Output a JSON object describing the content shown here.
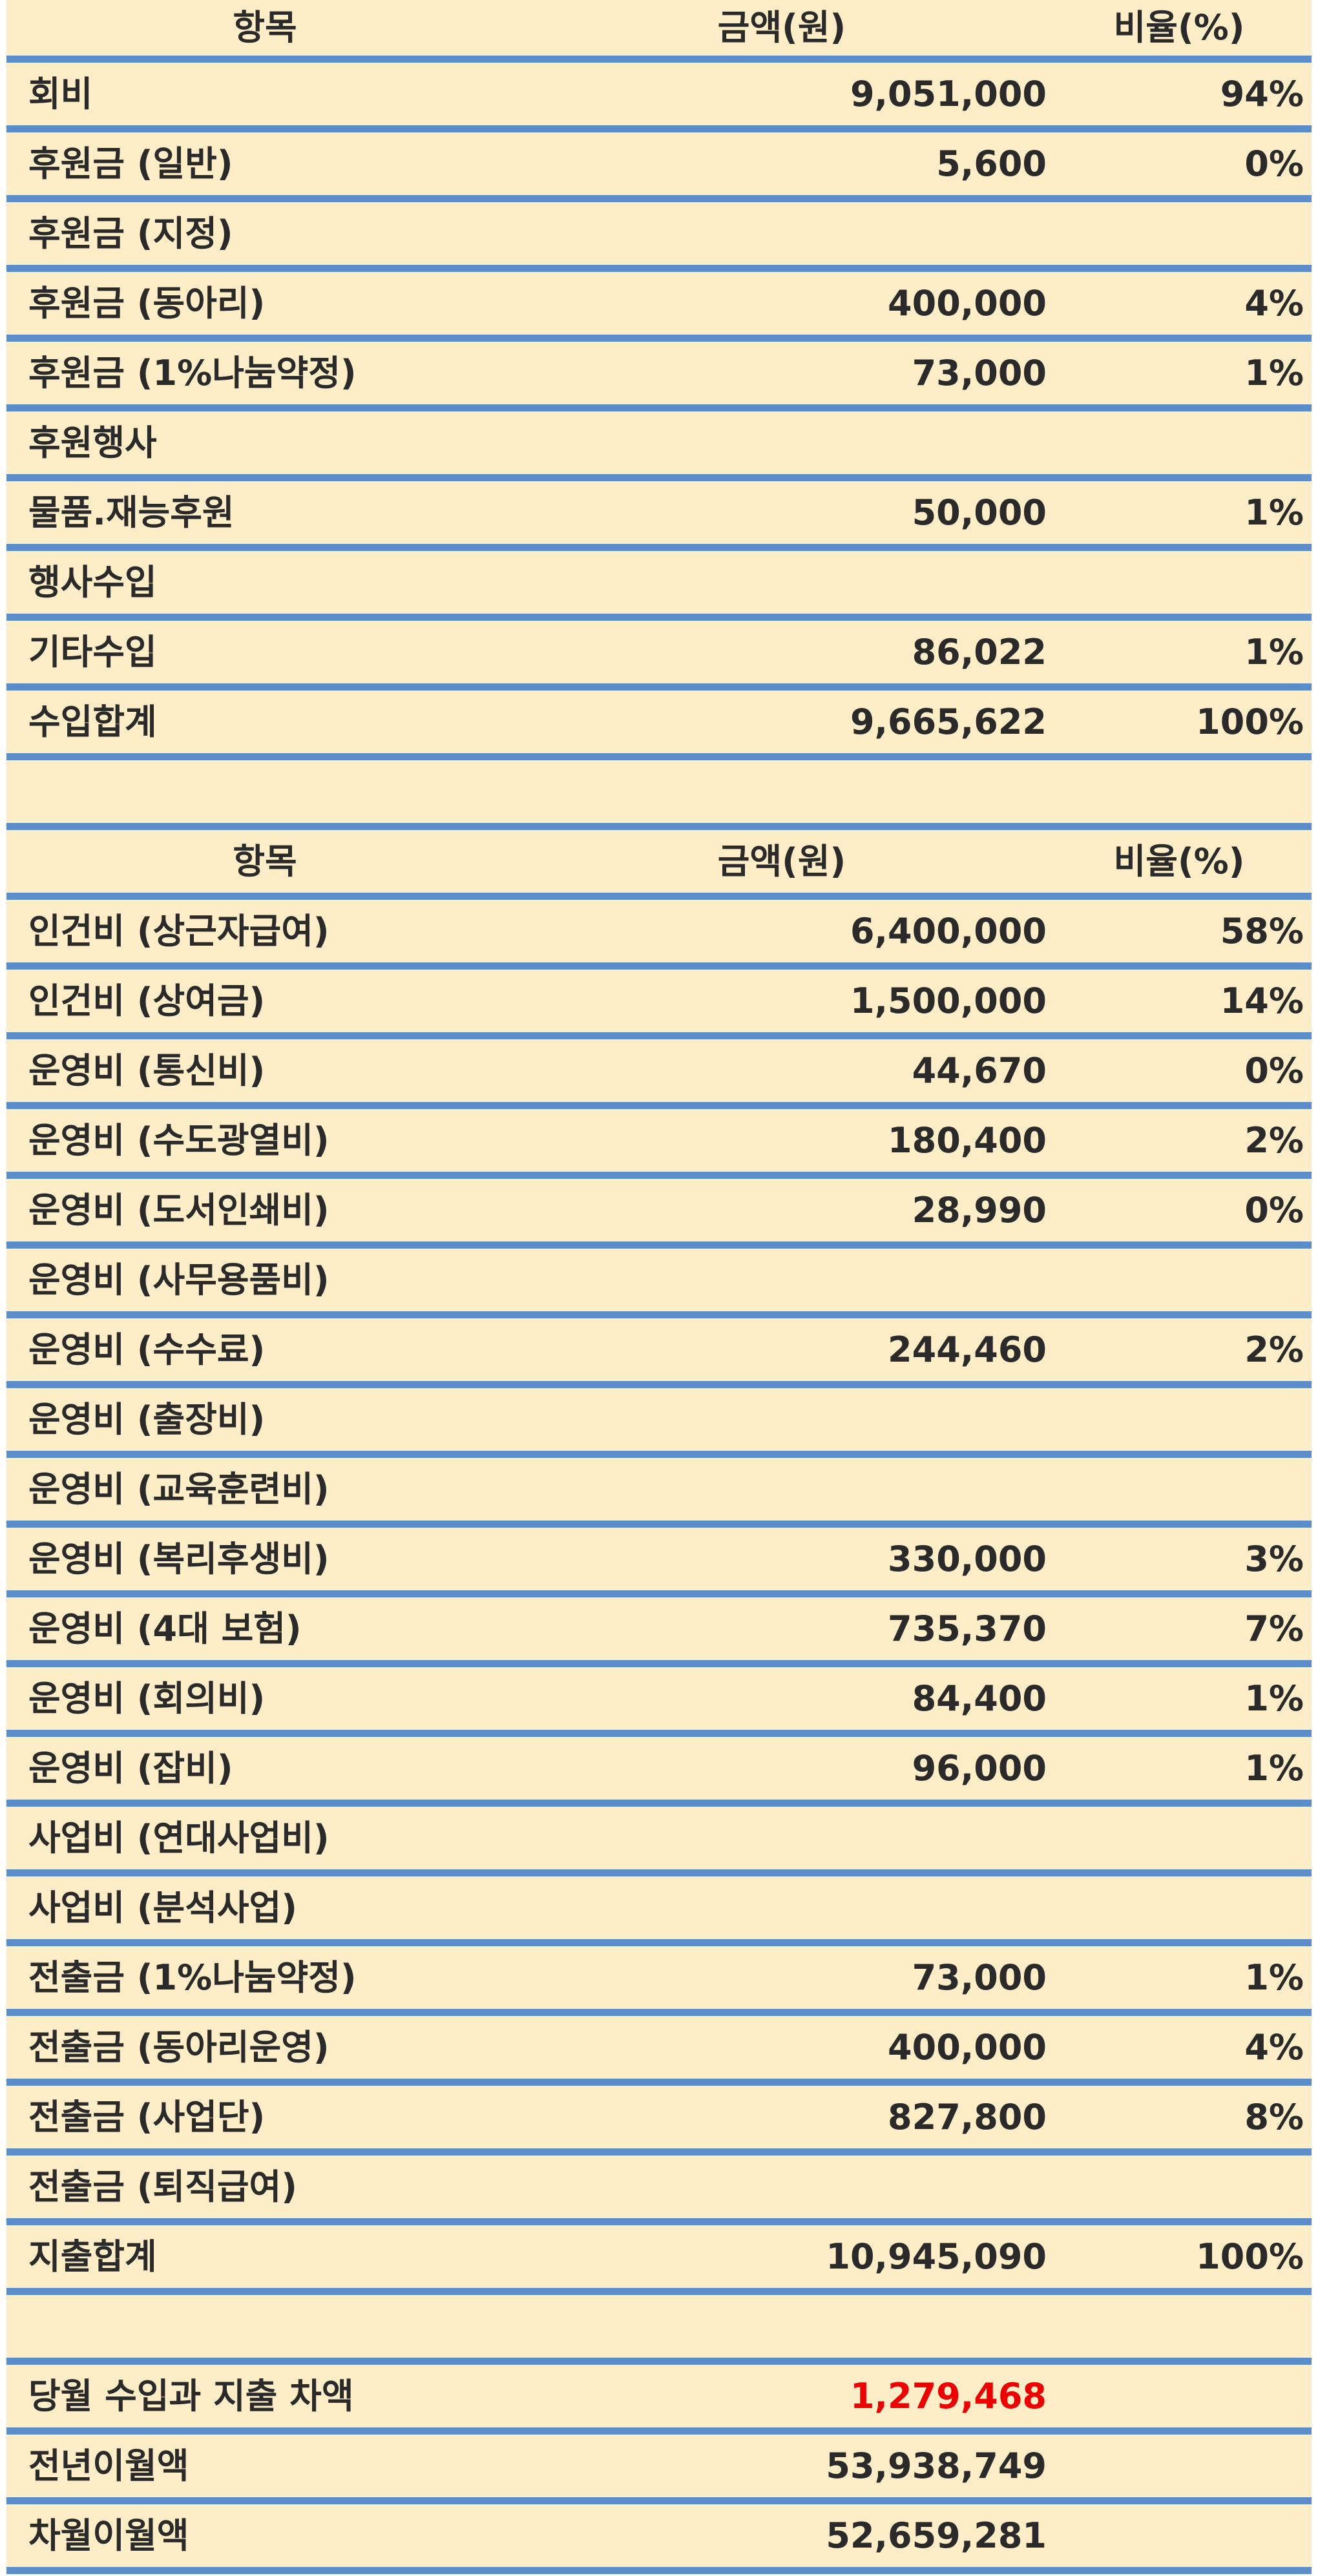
{
  "income": {
    "header": {
      "item": "항목",
      "amount": "금액(원)",
      "ratio": "비율(%)"
    },
    "rows": [
      {
        "item": "회비",
        "amount": "9,051,000",
        "ratio": "94%"
      },
      {
        "item": "후원금 (일반)",
        "amount": "5,600",
        "ratio": "0%"
      },
      {
        "item": "후원금 (지정)",
        "amount": "",
        "ratio": ""
      },
      {
        "item": "후원금 (동아리)",
        "amount": "400,000",
        "ratio": "4%"
      },
      {
        "item": "후원금 (1%나눔약정)",
        "amount": "73,000",
        "ratio": "1%"
      },
      {
        "item": "후원행사",
        "amount": "",
        "ratio": ""
      },
      {
        "item": "물품.재능후원",
        "amount": "50,000",
        "ratio": "1%"
      },
      {
        "item": "행사수입",
        "amount": "",
        "ratio": ""
      },
      {
        "item": "기타수입",
        "amount": "86,022",
        "ratio": "1%"
      },
      {
        "item": "수입합계",
        "amount": "9,665,622",
        "ratio": "100%"
      }
    ]
  },
  "expense": {
    "header": {
      "item": "항목",
      "amount": "금액(원)",
      "ratio": "비율(%)"
    },
    "rows": [
      {
        "item": "인건비 (상근자급여)",
        "amount": "6,400,000",
        "ratio": "58%"
      },
      {
        "item": "인건비 (상여금)",
        "amount": "1,500,000",
        "ratio": "14%"
      },
      {
        "item": "운영비 (통신비)",
        "amount": "44,670",
        "ratio": "0%"
      },
      {
        "item": "운영비 (수도광열비)",
        "amount": "180,400",
        "ratio": "2%"
      },
      {
        "item": "운영비 (도서인쇄비)",
        "amount": "28,990",
        "ratio": "0%"
      },
      {
        "item": "운영비 (사무용품비)",
        "amount": "",
        "ratio": ""
      },
      {
        "item": "운영비 (수수료)",
        "amount": "244,460",
        "ratio": "2%"
      },
      {
        "item": "운영비 (출장비)",
        "amount": "",
        "ratio": ""
      },
      {
        "item": "운영비 (교육훈련비)",
        "amount": "",
        "ratio": ""
      },
      {
        "item": "운영비 (복리후생비)",
        "amount": "330,000",
        "ratio": "3%"
      },
      {
        "item": "운영비 (4대 보험)",
        "amount": "735,370",
        "ratio": "7%"
      },
      {
        "item": "운영비 (회의비)",
        "amount": "84,400",
        "ratio": "1%"
      },
      {
        "item": "운영비 (잡비)",
        "amount": "96,000",
        "ratio": "1%"
      },
      {
        "item": "사업비 (연대사업비)",
        "amount": "",
        "ratio": ""
      },
      {
        "item": "사업비 (분석사업)",
        "amount": "",
        "ratio": ""
      },
      {
        "item": "전출금 (1%나눔약정)",
        "amount": "73,000",
        "ratio": "1%"
      },
      {
        "item": "전출금 (동아리운영)",
        "amount": "400,000",
        "ratio": "4%"
      },
      {
        "item": "전출금 (사업단)",
        "amount": "827,800",
        "ratio": "8%"
      },
      {
        "item": "전출금 (퇴직급여)",
        "amount": "",
        "ratio": ""
      },
      {
        "item": "지출합계",
        "amount": "10,945,090",
        "ratio": "100%"
      }
    ]
  },
  "summary": {
    "rows": [
      {
        "item": "당월 수입과 지출 차액",
        "amount": "1,279,468"
      },
      {
        "item": "전년이월액",
        "amount": "53,938,749"
      },
      {
        "item": "차월이월액",
        "amount": "52,659,281"
      }
    ]
  },
  "colors": {
    "background": "#fdeec7",
    "rule": "#5b8dc9",
    "highlight": "#ee0000",
    "text": "#2a2a2a"
  }
}
